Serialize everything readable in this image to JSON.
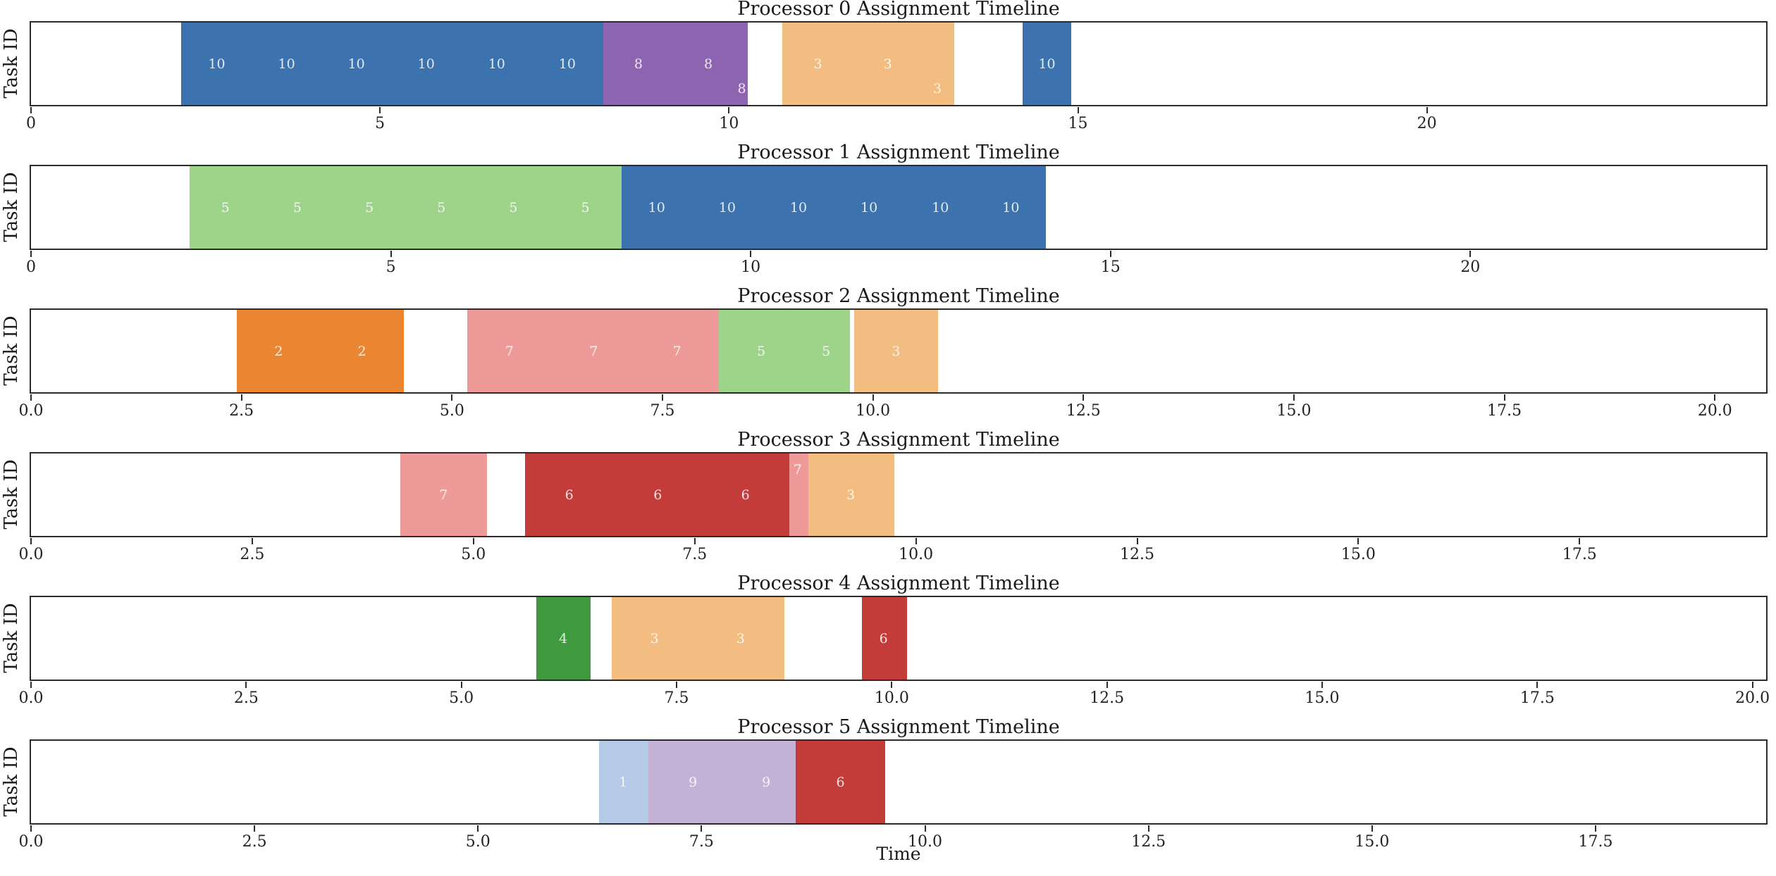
{
  "figure": {
    "xlabel": "Time",
    "background": "#ffffff",
    "axis_color": "#2b2b2b",
    "text_color": "#1a1a1a",
    "tick_color": "#222222",
    "bar_label_color": "rgba(255,255,255,0.85)",
    "task_colors": {
      "1": "#b5cae6",
      "2": "#ea8531",
      "3": "#f3bd81",
      "4": "#3f9a3f",
      "5": "#9dd489",
      "6": "#c43c39",
      "7": "#ee9a99",
      "8": "#8d64b0",
      "9": "#c4b1d6",
      "10": "#3c73ae"
    }
  },
  "chart_data": [
    {
      "type": "bar",
      "title": "Processor 0 Assignment Timeline",
      "ylabel": "Task ID",
      "xlabel": "",
      "xlim": [
        0,
        24.85
      ],
      "grid": false,
      "xticks": [
        0,
        5,
        10,
        15,
        20
      ],
      "tick_labels": [
        "0",
        "5",
        "10",
        "15",
        "20"
      ],
      "segments": [
        {
          "task": 10,
          "start": 2.15,
          "end": 3.16,
          "lx": 2.66,
          "ly": 0.5
        },
        {
          "task": 10,
          "start": 3.16,
          "end": 4.16,
          "lx": 3.66,
          "ly": 0.5
        },
        {
          "task": 10,
          "start": 4.16,
          "end": 5.16,
          "lx": 4.66,
          "ly": 0.5
        },
        {
          "task": 10,
          "start": 5.16,
          "end": 6.17,
          "lx": 5.66,
          "ly": 0.5
        },
        {
          "task": 10,
          "start": 6.17,
          "end": 7.17,
          "lx": 6.67,
          "ly": 0.5
        },
        {
          "task": 10,
          "start": 7.17,
          "end": 8.2,
          "lx": 7.68,
          "ly": 0.5
        },
        {
          "task": 8,
          "start": 8.2,
          "end": 9.2,
          "lx": 8.7,
          "ly": 0.5
        },
        {
          "task": 8,
          "start": 9.2,
          "end": 10.2,
          "lx": 9.7,
          "ly": 0.5
        },
        {
          "task": 8,
          "start": 10.2,
          "end": 10.27,
          "lx": 10.18,
          "ly": 0.8
        },
        {
          "task": 3,
          "start": 10.76,
          "end": 11.77,
          "lx": 11.27,
          "ly": 0.5
        },
        {
          "task": 3,
          "start": 11.77,
          "end": 12.78,
          "lx": 12.27,
          "ly": 0.5
        },
        {
          "task": 3,
          "start": 12.78,
          "end": 13.22,
          "lx": 12.98,
          "ly": 0.8
        },
        {
          "task": 10,
          "start": 14.2,
          "end": 14.9,
          "lx": 14.55,
          "ly": 0.5
        }
      ]
    },
    {
      "type": "bar",
      "title": "Processor 1 Assignment Timeline",
      "ylabel": "Task ID",
      "xlabel": "",
      "xlim": [
        0,
        24.1
      ],
      "grid": false,
      "xticks": [
        0,
        5,
        10,
        15,
        20
      ],
      "tick_labels": [
        "0",
        "5",
        "10",
        "15",
        "20"
      ],
      "segments": [
        {
          "task": 5,
          "start": 2.2,
          "end": 3.2,
          "lx": 2.7,
          "ly": 0.5
        },
        {
          "task": 5,
          "start": 3.2,
          "end": 4.2,
          "lx": 3.7,
          "ly": 0.5
        },
        {
          "task": 5,
          "start": 4.2,
          "end": 5.2,
          "lx": 4.7,
          "ly": 0.5
        },
        {
          "task": 5,
          "start": 5.2,
          "end": 6.2,
          "lx": 5.7,
          "ly": 0.5
        },
        {
          "task": 5,
          "start": 6.2,
          "end": 7.2,
          "lx": 6.7,
          "ly": 0.5
        },
        {
          "task": 5,
          "start": 7.2,
          "end": 8.2,
          "lx": 7.7,
          "ly": 0.5
        },
        {
          "task": 10,
          "start": 8.2,
          "end": 9.18,
          "lx": 8.69,
          "ly": 0.5
        },
        {
          "task": 10,
          "start": 9.18,
          "end": 10.17,
          "lx": 9.67,
          "ly": 0.5
        },
        {
          "task": 10,
          "start": 10.17,
          "end": 11.15,
          "lx": 10.66,
          "ly": 0.5
        },
        {
          "task": 10,
          "start": 11.15,
          "end": 12.14,
          "lx": 11.64,
          "ly": 0.5
        },
        {
          "task": 10,
          "start": 12.14,
          "end": 13.12,
          "lx": 12.63,
          "ly": 0.5
        },
        {
          "task": 10,
          "start": 13.12,
          "end": 14.1,
          "lx": 13.61,
          "ly": 0.5
        }
      ]
    },
    {
      "type": "bar",
      "title": "Processor 2 Assignment Timeline",
      "ylabel": "Task ID",
      "xlabel": "",
      "xlim": [
        0,
        20.6
      ],
      "grid": false,
      "xticks": [
        0,
        2.5,
        5,
        7.5,
        10,
        12.5,
        15,
        17.5,
        20
      ],
      "tick_labels": [
        "0.0",
        "2.5",
        "5.0",
        "7.5",
        "10.0",
        "12.5",
        "15.0",
        "17.5",
        "20.0"
      ],
      "segments": [
        {
          "task": 2,
          "start": 2.44,
          "end": 3.44,
          "lx": 2.94,
          "ly": 0.5
        },
        {
          "task": 2,
          "start": 3.44,
          "end": 4.43,
          "lx": 3.93,
          "ly": 0.5
        },
        {
          "task": 7,
          "start": 5.18,
          "end": 6.18,
          "lx": 5.68,
          "ly": 0.5
        },
        {
          "task": 7,
          "start": 6.18,
          "end": 7.18,
          "lx": 6.68,
          "ly": 0.5
        },
        {
          "task": 7,
          "start": 7.18,
          "end": 8.17,
          "lx": 7.67,
          "ly": 0.5
        },
        {
          "task": 5,
          "start": 8.17,
          "end": 9.17,
          "lx": 8.67,
          "ly": 0.5
        },
        {
          "task": 5,
          "start": 9.17,
          "end": 9.72,
          "lx": 9.44,
          "ly": 0.5
        },
        {
          "task": 3,
          "start": 9.77,
          "end": 10.77,
          "lx": 10.27,
          "ly": 0.5
        }
      ]
    },
    {
      "type": "bar",
      "title": "Processor 3 Assignment Timeline",
      "ylabel": "Task ID",
      "xlabel": "",
      "xlim": [
        0,
        19.6
      ],
      "grid": false,
      "xticks": [
        0,
        2.5,
        5,
        7.5,
        10,
        12.5,
        15,
        17.5
      ],
      "tick_labels": [
        "0.0",
        "2.5",
        "5.0",
        "7.5",
        "10.0",
        "12.5",
        "15.0",
        "17.5"
      ],
      "segments": [
        {
          "task": 7,
          "start": 4.17,
          "end": 5.15,
          "lx": 4.66,
          "ly": 0.5
        },
        {
          "task": 6,
          "start": 5.58,
          "end": 6.58,
          "lx": 6.08,
          "ly": 0.5
        },
        {
          "task": 6,
          "start": 6.58,
          "end": 7.58,
          "lx": 7.08,
          "ly": 0.5
        },
        {
          "task": 6,
          "start": 7.58,
          "end": 8.57,
          "lx": 8.07,
          "ly": 0.5
        },
        {
          "task": 7,
          "start": 8.57,
          "end": 8.78,
          "lx": 8.66,
          "ly": 0.2
        },
        {
          "task": 3,
          "start": 8.78,
          "end": 9.75,
          "lx": 9.26,
          "ly": 0.5
        }
      ]
    },
    {
      "type": "bar",
      "title": "Processor 4 Assignment Timeline",
      "ylabel": "Task ID",
      "xlabel": "",
      "xlim": [
        0,
        20.15
      ],
      "grid": false,
      "xticks": [
        0,
        2.5,
        5,
        7.5,
        10,
        12.5,
        15,
        17.5,
        20
      ],
      "tick_labels": [
        "0.0",
        "2.5",
        "5.0",
        "7.5",
        "10.0",
        "12.5",
        "15.0",
        "17.5",
        "20.0"
      ],
      "segments": [
        {
          "task": 4,
          "start": 5.87,
          "end": 6.5,
          "lx": 6.18,
          "ly": 0.5
        },
        {
          "task": 3,
          "start": 6.74,
          "end": 7.74,
          "lx": 7.24,
          "ly": 0.5
        },
        {
          "task": 3,
          "start": 7.74,
          "end": 8.75,
          "lx": 8.24,
          "ly": 0.5
        },
        {
          "task": 6,
          "start": 9.65,
          "end": 10.17,
          "lx": 9.9,
          "ly": 0.5
        }
      ]
    },
    {
      "type": "bar",
      "title": "Processor 5 Assignment Timeline",
      "ylabel": "Task ID",
      "xlabel": "Time",
      "xlim": [
        0,
        19.4
      ],
      "grid": false,
      "xticks": [
        0,
        2.5,
        5,
        7.5,
        10,
        12.5,
        15,
        17.5
      ],
      "tick_labels": [
        "0.0",
        "2.5",
        "5.0",
        "7.5",
        "10.0",
        "12.5",
        "15.0",
        "17.5"
      ],
      "segments": [
        {
          "task": 1,
          "start": 6.35,
          "end": 6.9,
          "lx": 6.62,
          "ly": 0.5
        },
        {
          "task": 9,
          "start": 6.9,
          "end": 7.9,
          "lx": 7.4,
          "ly": 0.5
        },
        {
          "task": 9,
          "start": 7.9,
          "end": 8.55,
          "lx": 8.22,
          "ly": 0.5
        },
        {
          "task": 6,
          "start": 8.55,
          "end": 9.55,
          "lx": 9.05,
          "ly": 0.5
        }
      ]
    }
  ]
}
